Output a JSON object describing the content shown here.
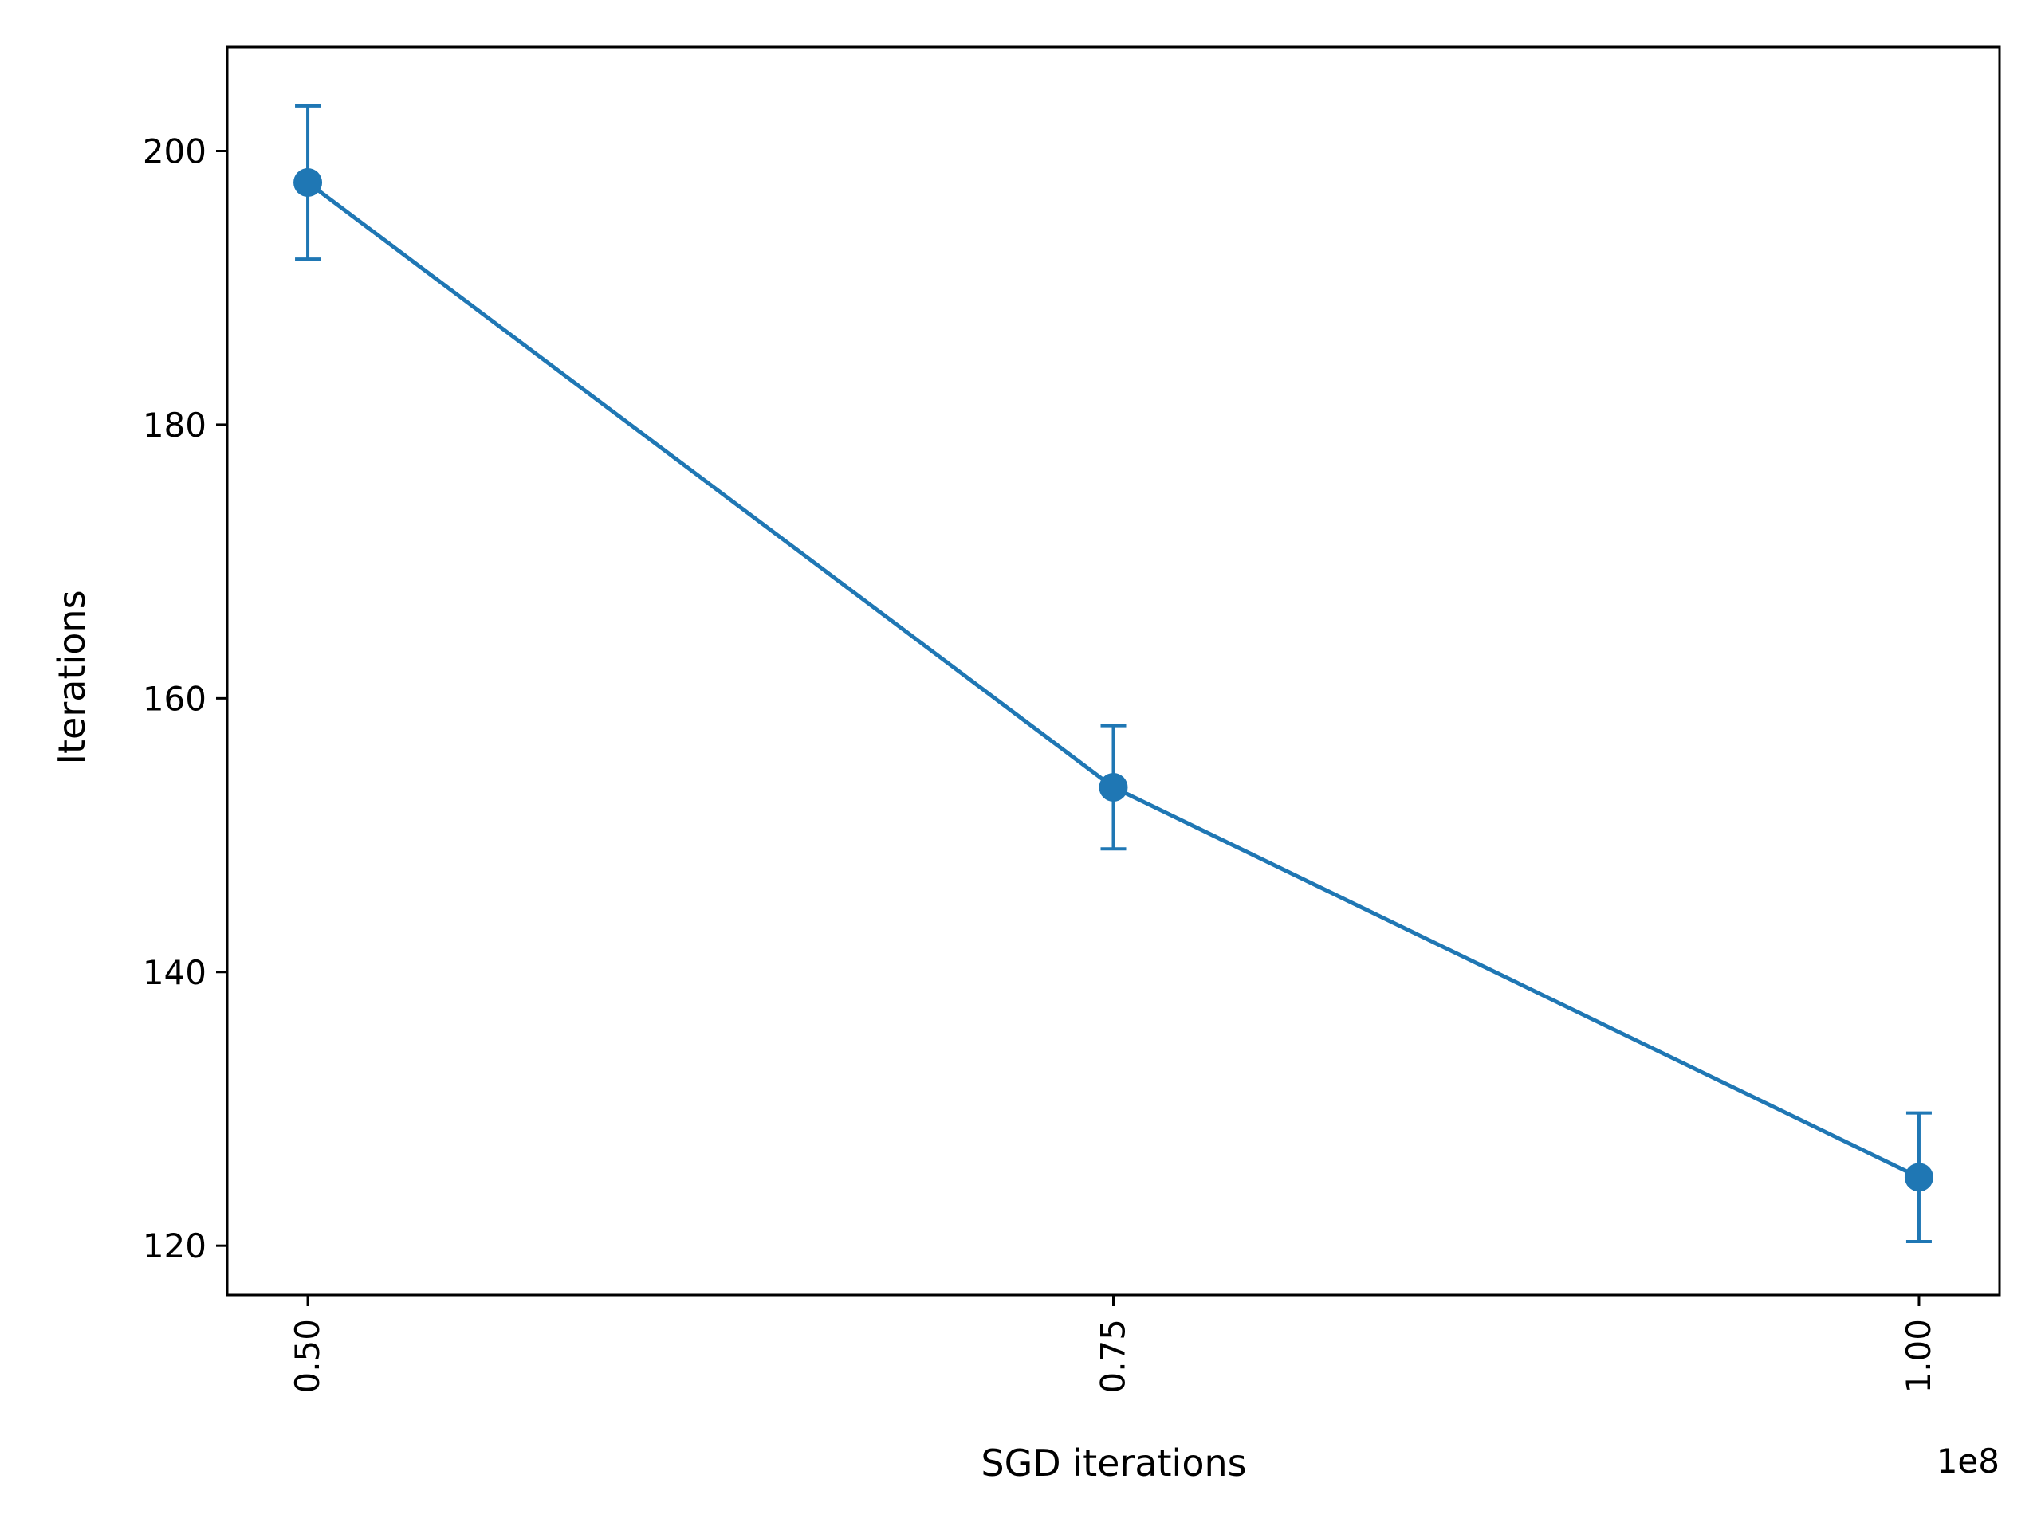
{
  "chart_data": {
    "type": "line",
    "title": "",
    "xlabel": "SGD iterations",
    "ylabel": "Iterations",
    "x_offset_label": "1e8",
    "x_tick_values": [
      0.5,
      0.75,
      1.0
    ],
    "x_tick_labels": [
      "0.50",
      "0.75",
      "1.00"
    ],
    "y_tick_values": [
      120,
      140,
      160,
      180,
      200
    ],
    "y_tick_labels": [
      "120",
      "140",
      "160",
      "180",
      "200"
    ],
    "xlim": [
      0.475,
      1.025
    ],
    "ylim": [
      116.4,
      207.6
    ],
    "grid": false,
    "legend": "none",
    "series": [
      {
        "color": "#1f77b4",
        "marker": "circle",
        "x": [
          0.5,
          0.75,
          1.0
        ],
        "y": [
          197.7,
          153.5,
          125.0
        ],
        "yerr": [
          5.6,
          4.5,
          4.7
        ]
      }
    ]
  }
}
